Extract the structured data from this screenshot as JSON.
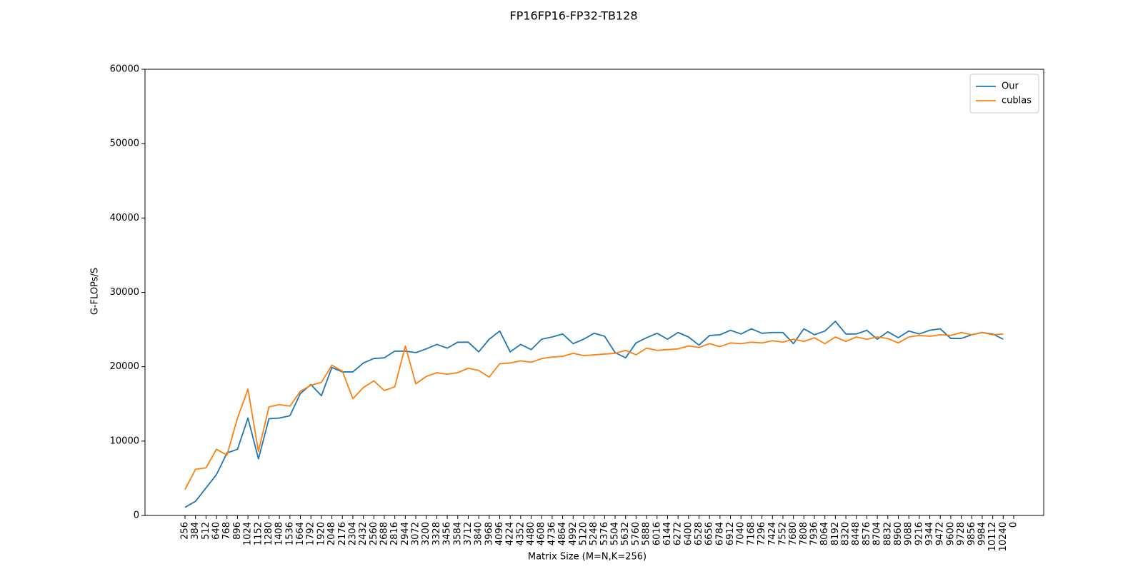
{
  "chart_data": {
    "type": "line",
    "title": "FP16FP16-FP32-TB128",
    "x_label": "Matrix Size (M=N,K=256)",
    "y_label": "G-FLOPs/S",
    "categories": [
      "256",
      "384",
      "512",
      "640",
      "768",
      "896",
      "1024",
      "1152",
      "1280",
      "1408",
      "1536",
      "1664",
      "1792",
      "1920",
      "2048",
      "2176",
      "2304",
      "2432",
      "2560",
      "2688",
      "2816",
      "2944",
      "3072",
      "3200",
      "3328",
      "3456",
      "3584",
      "3712",
      "3840",
      "3968",
      "4096",
      "4224",
      "4352",
      "4480",
      "4608",
      "4736",
      "4864",
      "4992",
      "5120",
      "5248",
      "5376",
      "5504",
      "5632",
      "5760",
      "5888",
      "6016",
      "6144",
      "6272",
      "6400",
      "6528",
      "6656",
      "6784",
      "6912",
      "7040",
      "7168",
      "7296",
      "7424",
      "7552",
      "7680",
      "7808",
      "7936",
      "8064",
      "8192",
      "8320",
      "8448",
      "8576",
      "8704",
      "8832",
      "8960",
      "9088",
      "9216",
      "9344",
      "9472",
      "9600",
      "9728",
      "9856",
      "9984",
      "10112",
      "10240",
      "0"
    ],
    "series": [
      {
        "name": "Our",
        "color": "#1f77b4",
        "values": [
          1100,
          1900,
          3700,
          5500,
          8400,
          8900,
          13100,
          7600,
          13000,
          13100,
          13400,
          16400,
          17600,
          16100,
          19900,
          19300,
          19300,
          20500,
          21100,
          21200,
          22100,
          22100,
          21900,
          22400,
          23000,
          22500,
          23300,
          23300,
          22000,
          23700,
          24800,
          22000,
          23000,
          22300,
          23700,
          24000,
          24400,
          23100,
          23700,
          24500,
          24100,
          21900,
          21200,
          23200,
          23900,
          24500,
          23700,
          24600,
          24000,
          22900,
          24200,
          24300,
          24900,
          24400,
          25100,
          24500,
          24600,
          24600,
          23100,
          25100,
          24300,
          24800,
          26100,
          24400,
          24400,
          24900,
          23700,
          24700,
          23900,
          24800,
          24400,
          24900,
          25100,
          23800,
          23800,
          24300,
          24600,
          24400,
          23700,
          null
        ]
      },
      {
        "name": "cublas",
        "color": "#ff7f0e",
        "values": [
          3500,
          6200,
          6400,
          8900,
          8100,
          13100,
          17000,
          8600,
          14600,
          14900,
          14700,
          16700,
          17500,
          17900,
          20200,
          19400,
          15700,
          17200,
          18100,
          16800,
          17300,
          22800,
          17700,
          18700,
          19200,
          19000,
          19200,
          19800,
          19500,
          18600,
          20400,
          20500,
          20800,
          20600,
          21100,
          21300,
          21400,
          21800,
          21500,
          21600,
          21700,
          21800,
          22200,
          21600,
          22500,
          22200,
          22300,
          22400,
          22800,
          22600,
          23100,
          22700,
          23200,
          23100,
          23300,
          23200,
          23500,
          23300,
          23700,
          23400,
          23900,
          23100,
          24000,
          23400,
          24000,
          23700,
          24000,
          23800,
          23200,
          24000,
          24200,
          24100,
          24300,
          24200,
          24600,
          24300,
          24600,
          24300,
          24400,
          null
        ]
      }
    ],
    "ylim": [
      0,
      60000
    ],
    "yticks": [
      0,
      10000,
      20000,
      30000,
      40000,
      50000,
      60000
    ],
    "grid": false,
    "legend": "upper right"
  }
}
